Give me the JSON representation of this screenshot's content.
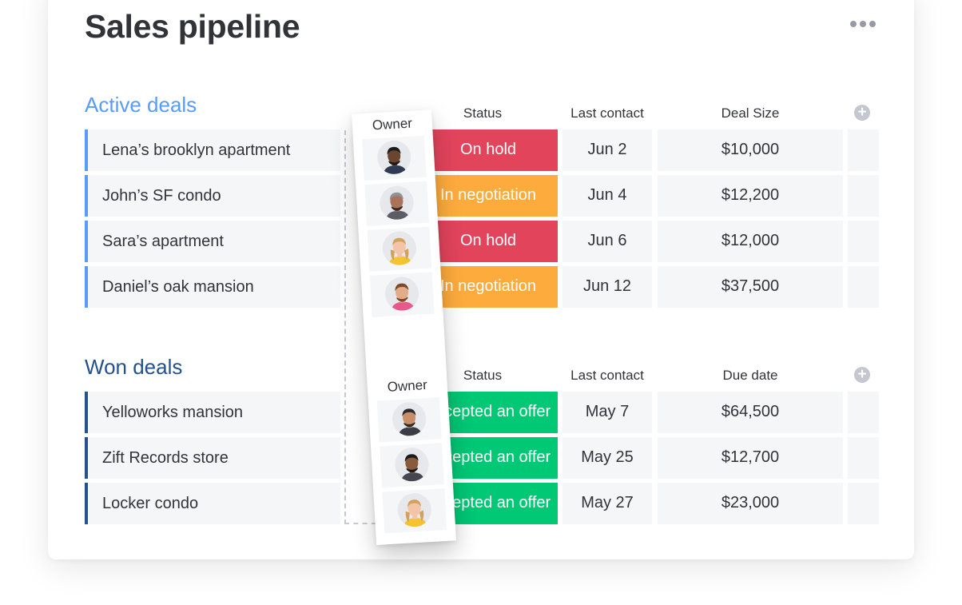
{
  "board": {
    "title": "Sales pipeline",
    "menu_icon": "more-dots-icon"
  },
  "groups": [
    {
      "title": "Active deals",
      "color": "#579bfc",
      "columns": {
        "status": "Status",
        "date": "Last contact",
        "value": "Deal Size"
      },
      "owner_label": "Owner",
      "rows": [
        {
          "name": "Lena’s brooklyn apartment",
          "status": "On hold",
          "status_color": "#e2445c",
          "date": "Jun 2",
          "value": "$10,000"
        },
        {
          "name": "John’s SF condo",
          "status": "In negotiation",
          "status_color": "#fdab3d",
          "date": "Jun 4",
          "value": "$12,200"
        },
        {
          "name": "Sara’s apartment",
          "status": "On hold",
          "status_color": "#e2445c",
          "date": "Jun 6",
          "value": "$12,000"
        },
        {
          "name": "Daniel’s oak mansion",
          "status": "In negotiation",
          "status_color": "#fdab3d",
          "date": "Jun 12",
          "value": "$37,500"
        }
      ]
    },
    {
      "title": "Won deals",
      "color": "#225091",
      "columns": {
        "status": "Status",
        "date": "Last contact",
        "value": "Due date"
      },
      "owner_label": "Owner",
      "rows": [
        {
          "name": "Yelloworks mansion",
          "status": "Accepted an offer",
          "status_color": "#00c875",
          "date": "May 7",
          "value": "$64,500"
        },
        {
          "name": "Zift Records store",
          "status": "Accepted an offer",
          "status_color": "#00c875",
          "date": "May 25",
          "value": "$12,700"
        },
        {
          "name": "Locker condo",
          "status": "Accepted an offer",
          "status_color": "#00c875",
          "date": "May 27",
          "value": "$23,000"
        }
      ]
    }
  ],
  "owners": [
    {
      "skin": "#6b4530",
      "hair": "#1b1b1b",
      "shirt": "#2f3b52",
      "beard": "#1b1b1b"
    },
    {
      "skin": "#a8735a",
      "hair": "#8f9298",
      "shirt": "#5a5d66",
      "beard": "#3a2a22"
    },
    {
      "skin": "#f1c5a5",
      "hair": "#d3a15a",
      "shirt": "#f5c331",
      "beard": ""
    },
    {
      "skin": "#e2ab8a",
      "hair": "#7a4a2b",
      "shirt": "#e8598b",
      "beard": "#7a4a2b"
    },
    {
      "skin": "#c88e6a",
      "hair": "#2b2b2b",
      "shirt": "#3a3d46",
      "beard": "#2b2b2b"
    },
    {
      "skin": "#8a5a3c",
      "hair": "#1b1b1b",
      "shirt": "#44474f",
      "beard": "#1b1b1b"
    },
    {
      "skin": "#f1c5a5",
      "hair": "#d3a15a",
      "shirt": "#f5c331",
      "beard": ""
    }
  ],
  "icons": {
    "add_column": "plus-circle-icon"
  },
  "add_column_symbol": "+"
}
